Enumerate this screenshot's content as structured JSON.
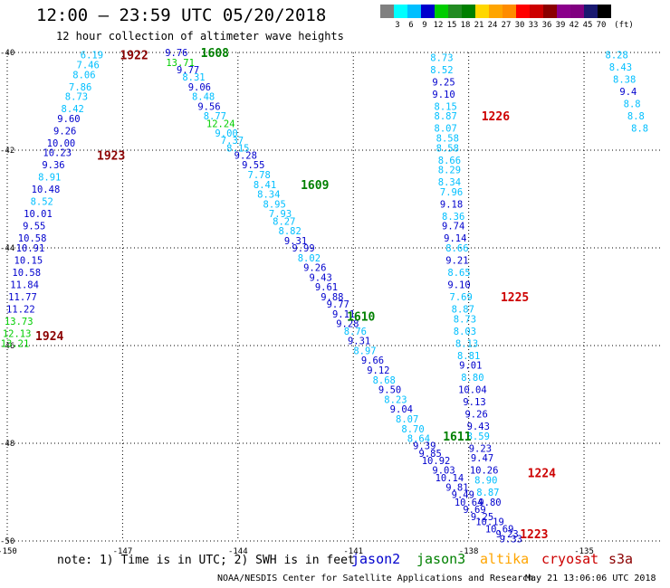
{
  "title": "12:00 — 23:59 UTC 05/20/2018",
  "subtitle": "12 hour collection of altimeter wave heights",
  "legend": {
    "colors": [
      "#808080",
      "#00ffff",
      "#00bfff",
      "#0000cd",
      "#00cd00",
      "#228b22",
      "#008000",
      "#ffd700",
      "#ffa500",
      "#ff8c00",
      "#ff0000",
      "#cd0000",
      "#8b0000",
      "#8b008b",
      "#800080",
      "#191970",
      "#000000"
    ],
    "labels": [
      "3",
      "6",
      "9",
      "12",
      "15",
      "18",
      "21",
      "24",
      "27",
      "30",
      "33",
      "36",
      "39",
      "42",
      "45",
      "70"
    ],
    "unit": "(ft)"
  },
  "note": "note: 1) Time is in UTC; 2) SWH is in feet",
  "satellites": [
    {
      "name": "jason2",
      "color": "#0000cd"
    },
    {
      "name": "jason3",
      "color": "#008000"
    },
    {
      "name": "altika",
      "color": "#ffa500"
    },
    {
      "name": "cryosat",
      "color": "#cd0000"
    },
    {
      "name": "s3a",
      "color": "#8b0000"
    }
  ],
  "credit": "NOAA/NESDIS Center for Satellite Applications and Research",
  "stamp": "May 21 13:06:06 UTC 2018",
  "chart_data": {
    "type": "scatter",
    "xlim": [
      -150,
      -133
    ],
    "ylim": [
      -50,
      -40
    ],
    "x_ticks": [
      "-150",
      "-147",
      "-144",
      "-141",
      "-138",
      "-135"
    ],
    "y_ticks": [
      "-40",
      "-42",
      "-44",
      "-46",
      "-48",
      "-50"
    ],
    "grid": true,
    "grid_style": "dotted",
    "palette": {
      "c3": "#00ffff",
      "c6": "#00bfff",
      "c9": "#0000cd",
      "c12": "#00cd00",
      "j3": "#008000",
      "cryo": "#cd0000",
      "s3a": "#8b0000"
    },
    "time_labels": [
      {
        "text": "1922",
        "x": -146.7,
        "y": -40.05,
        "c": "s3a"
      },
      {
        "text": "1923",
        "x": -147.3,
        "y": -42.1,
        "c": "s3a"
      },
      {
        "text": "1924",
        "x": -148.9,
        "y": -45.8,
        "c": "s3a"
      },
      {
        "text": "1608",
        "x": -144.6,
        "y": -40.0,
        "c": "j3"
      },
      {
        "text": "1609",
        "x": -142.0,
        "y": -42.7,
        "c": "j3"
      },
      {
        "text": "1610",
        "x": -140.8,
        "y": -45.4,
        "c": "j3"
      },
      {
        "text": "1611",
        "x": -138.3,
        "y": -47.85,
        "c": "j3"
      },
      {
        "text": "1226",
        "x": -137.3,
        "y": -41.3,
        "c": "cryo"
      },
      {
        "text": "1225",
        "x": -136.8,
        "y": -45.0,
        "c": "cryo"
      },
      {
        "text": "1224",
        "x": -136.1,
        "y": -48.6,
        "c": "cryo"
      },
      {
        "text": "1223",
        "x": -136.3,
        "y": -49.85,
        "c": "cryo"
      }
    ],
    "tracks": [
      {
        "name": "s3a-1922",
        "points": [
          {
            "v": "6.19",
            "x": -147.8,
            "y": -40.05,
            "c": "c6"
          },
          {
            "v": "7.46",
            "x": -147.9,
            "y": -40.25,
            "c": "c6"
          },
          {
            "v": "8.06",
            "x": -148.0,
            "y": -40.45,
            "c": "c6"
          },
          {
            "v": "7.86",
            "x": -148.1,
            "y": -40.7,
            "c": "c6"
          },
          {
            "v": "8.73",
            "x": -148.2,
            "y": -40.9,
            "c": "c6"
          },
          {
            "v": "8.42",
            "x": -148.3,
            "y": -41.15,
            "c": "c6"
          },
          {
            "v": "9.60",
            "x": -148.4,
            "y": -41.35,
            "c": "c9"
          },
          {
            "v": "9.26",
            "x": -148.5,
            "y": -41.6,
            "c": "c9"
          },
          {
            "v": "10.00",
            "x": -148.6,
            "y": -41.85,
            "c": "c9"
          }
        ]
      },
      {
        "name": "s3a-1923",
        "points": [
          {
            "v": "10.23",
            "x": -148.7,
            "y": -42.05,
            "c": "c9"
          },
          {
            "v": "9.36",
            "x": -148.8,
            "y": -42.3,
            "c": "c9"
          },
          {
            "v": "8.91",
            "x": -148.9,
            "y": -42.55,
            "c": "c6"
          },
          {
            "v": "10.48",
            "x": -149.0,
            "y": -42.8,
            "c": "c9"
          },
          {
            "v": "8.52",
            "x": -149.1,
            "y": -43.05,
            "c": "c6"
          },
          {
            "v": "10.01",
            "x": -149.2,
            "y": -43.3,
            "c": "c9"
          },
          {
            "v": "9.55",
            "x": -149.3,
            "y": -43.55,
            "c": "c9"
          },
          {
            "v": "10.58",
            "x": -149.35,
            "y": -43.8,
            "c": "c9"
          },
          {
            "v": "10.91",
            "x": -149.4,
            "y": -44.0,
            "c": "c9"
          },
          {
            "v": "10.15",
            "x": -149.45,
            "y": -44.25,
            "c": "c9"
          },
          {
            "v": "10.58",
            "x": -149.5,
            "y": -44.5,
            "c": "c9"
          },
          {
            "v": "11.84",
            "x": -149.55,
            "y": -44.75,
            "c": "c9"
          },
          {
            "v": "11.77",
            "x": -149.6,
            "y": -45.0,
            "c": "c9"
          },
          {
            "v": "11.22",
            "x": -149.65,
            "y": -45.25,
            "c": "c9"
          },
          {
            "v": "13.73",
            "x": -149.7,
            "y": -45.5,
            "c": "c12"
          },
          {
            "v": "12.13",
            "x": -149.75,
            "y": -45.75,
            "c": "c12"
          },
          {
            "v": "13.21",
            "x": -149.8,
            "y": -45.95,
            "c": "c12"
          }
        ]
      },
      {
        "name": "jason3-1608-1611",
        "points": [
          {
            "v": "9.76",
            "x": -145.6,
            "y": -40.0,
            "c": "c9"
          },
          {
            "v": "13.71",
            "x": -145.5,
            "y": -40.2,
            "c": "c12"
          },
          {
            "v": "9.77",
            "x": -145.3,
            "y": -40.35,
            "c": "c9"
          },
          {
            "v": "8.31",
            "x": -145.15,
            "y": -40.5,
            "c": "c6"
          },
          {
            "v": "9.06",
            "x": -145.0,
            "y": -40.7,
            "c": "c9"
          },
          {
            "v": "8.48",
            "x": -144.9,
            "y": -40.9,
            "c": "c6"
          },
          {
            "v": "9.56",
            "x": -144.75,
            "y": -41.1,
            "c": "c9"
          },
          {
            "v": "8.77",
            "x": -144.6,
            "y": -41.3,
            "c": "c6"
          },
          {
            "v": "12.24",
            "x": -144.45,
            "y": -41.45,
            "c": "c12"
          },
          {
            "v": "9.00",
            "x": -144.3,
            "y": -41.65,
            "c": "c6"
          },
          {
            "v": "7.37",
            "x": -144.15,
            "y": -41.8,
            "c": "c6"
          },
          {
            "v": "8.15",
            "x": -144.0,
            "y": -41.95,
            "c": "c6"
          },
          {
            "v": "9.28",
            "x": -143.8,
            "y": -42.1,
            "c": "c9"
          },
          {
            "v": "9.55",
            "x": -143.6,
            "y": -42.3,
            "c": "c9"
          },
          {
            "v": "7.78",
            "x": -143.45,
            "y": -42.5,
            "c": "c6"
          },
          {
            "v": "8.41",
            "x": -143.3,
            "y": -42.7,
            "c": "c6"
          },
          {
            "v": "8.34",
            "x": -143.2,
            "y": -42.9,
            "c": "c6"
          },
          {
            "v": "8.95",
            "x": -143.05,
            "y": -43.1,
            "c": "c6"
          },
          {
            "v": "7.93",
            "x": -142.9,
            "y": -43.3,
            "c": "c6"
          },
          {
            "v": "8.27",
            "x": -142.8,
            "y": -43.45,
            "c": "c6"
          },
          {
            "v": "8.82",
            "x": -142.65,
            "y": -43.65,
            "c": "c6"
          },
          {
            "v": "9.31",
            "x": -142.5,
            "y": -43.85,
            "c": "c9"
          },
          {
            "v": "9.99",
            "x": -142.3,
            "y": -44.0,
            "c": "c9"
          },
          {
            "v": "8.02",
            "x": -142.15,
            "y": -44.2,
            "c": "c6"
          },
          {
            "v": "9.26",
            "x": -142.0,
            "y": -44.4,
            "c": "c9"
          },
          {
            "v": "9.43",
            "x": -141.85,
            "y": -44.6,
            "c": "c9"
          },
          {
            "v": "9.61",
            "x": -141.7,
            "y": -44.8,
            "c": "c9"
          },
          {
            "v": "9.88",
            "x": -141.55,
            "y": -45.0,
            "c": "c9"
          },
          {
            "v": "9.77",
            "x": -141.4,
            "y": -45.15,
            "c": "c9"
          },
          {
            "v": "9.11",
            "x": -141.25,
            "y": -45.35,
            "c": "c9"
          },
          {
            "v": "9.28",
            "x": -141.15,
            "y": -45.55,
            "c": "c9"
          },
          {
            "v": "8.76",
            "x": -140.95,
            "y": -45.7,
            "c": "c6"
          },
          {
            "v": "9.31",
            "x": -140.85,
            "y": -45.9,
            "c": "c9"
          },
          {
            "v": "8.97",
            "x": -140.7,
            "y": -46.1,
            "c": "c6"
          },
          {
            "v": "9.66",
            "x": -140.5,
            "y": -46.3,
            "c": "c9"
          },
          {
            "v": "9.12",
            "x": -140.35,
            "y": -46.5,
            "c": "c9"
          },
          {
            "v": "8.68",
            "x": -140.2,
            "y": -46.7,
            "c": "c6"
          },
          {
            "v": "9.50",
            "x": -140.05,
            "y": -46.9,
            "c": "c9"
          },
          {
            "v": "8.23",
            "x": -139.9,
            "y": -47.1,
            "c": "c6"
          },
          {
            "v": "9.04",
            "x": -139.75,
            "y": -47.3,
            "c": "c9"
          },
          {
            "v": "8.07",
            "x": -139.6,
            "y": -47.5,
            "c": "c6"
          },
          {
            "v": "8.70",
            "x": -139.45,
            "y": -47.7,
            "c": "c6"
          },
          {
            "v": "8.64",
            "x": -139.3,
            "y": -47.9,
            "c": "c6"
          },
          {
            "v": "9.39",
            "x": -139.15,
            "y": -48.05,
            "c": "c9"
          },
          {
            "v": "9.85",
            "x": -139.0,
            "y": -48.2,
            "c": "c9"
          },
          {
            "v": "10.92",
            "x": -138.85,
            "y": -48.35,
            "c": "c9"
          },
          {
            "v": "9.03",
            "x": -138.65,
            "y": -48.55,
            "c": "c9"
          },
          {
            "v": "10.14",
            "x": -138.5,
            "y": -48.7,
            "c": "c9"
          },
          {
            "v": "9.81",
            "x": -138.3,
            "y": -48.9,
            "c": "c9"
          },
          {
            "v": "9.49",
            "x": -138.15,
            "y": -49.05,
            "c": "c9"
          },
          {
            "v": "10.64",
            "x": -138.0,
            "y": -49.2,
            "c": "c9"
          },
          {
            "v": "9.69",
            "x": -137.85,
            "y": -49.35,
            "c": "c9"
          },
          {
            "v": "9.25",
            "x": -137.65,
            "y": -49.5,
            "c": "c9"
          },
          {
            "v": "10.19",
            "x": -137.45,
            "y": -49.6,
            "c": "c9"
          },
          {
            "v": "10.69",
            "x": -137.2,
            "y": -49.75,
            "c": "c9"
          },
          {
            "v": "9.23",
            "x": -137.0,
            "y": -49.85,
            "c": "c9"
          }
        ]
      },
      {
        "name": "cryosat-1226-1223",
        "points": [
          {
            "v": "8.73",
            "x": -138.7,
            "y": -40.1,
            "c": "c6"
          },
          {
            "v": "8.52",
            "x": -138.7,
            "y": -40.35,
            "c": "c6"
          },
          {
            "v": "9.25",
            "x": -138.65,
            "y": -40.6,
            "c": "c9"
          },
          {
            "v": "9.10",
            "x": -138.65,
            "y": -40.85,
            "c": "c9"
          },
          {
            "v": "8.15",
            "x": -138.6,
            "y": -41.1,
            "c": "c6"
          },
          {
            "v": "8.87",
            "x": -138.6,
            "y": -41.3,
            "c": "c6"
          },
          {
            "v": "8.07",
            "x": -138.6,
            "y": -41.55,
            "c": "c6"
          },
          {
            "v": "8.58",
            "x": -138.55,
            "y": -41.75,
            "c": "c6"
          },
          {
            "v": "8.58",
            "x": -138.55,
            "y": -41.95,
            "c": "c6"
          },
          {
            "v": "8.66",
            "x": -138.5,
            "y": -42.2,
            "c": "c6"
          },
          {
            "v": "8.29",
            "x": -138.5,
            "y": -42.4,
            "c": "c6"
          },
          {
            "v": "8.34",
            "x": -138.5,
            "y": -42.65,
            "c": "c6"
          },
          {
            "v": "7.96",
            "x": -138.45,
            "y": -42.85,
            "c": "c6"
          },
          {
            "v": "9.18",
            "x": -138.45,
            "y": -43.1,
            "c": "c9"
          },
          {
            "v": "8.36",
            "x": -138.4,
            "y": -43.35,
            "c": "c6"
          },
          {
            "v": "9.74",
            "x": -138.4,
            "y": -43.55,
            "c": "c9"
          },
          {
            "v": "9.14",
            "x": -138.35,
            "y": -43.8,
            "c": "c9"
          },
          {
            "v": "8.66",
            "x": -138.3,
            "y": -44.0,
            "c": "c6"
          },
          {
            "v": "9.21",
            "x": -138.3,
            "y": -44.25,
            "c": "c9"
          },
          {
            "v": "8.65",
            "x": -138.25,
            "y": -44.5,
            "c": "c6"
          },
          {
            "v": "9.10",
            "x": -138.25,
            "y": -44.75,
            "c": "c9"
          },
          {
            "v": "7.69",
            "x": -138.2,
            "y": -45.0,
            "c": "c6"
          },
          {
            "v": "8.87",
            "x": -138.15,
            "y": -45.25,
            "c": "c6"
          },
          {
            "v": "8.73",
            "x": -138.1,
            "y": -45.45,
            "c": "c6"
          },
          {
            "v": "8.03",
            "x": -138.1,
            "y": -45.7,
            "c": "c6"
          },
          {
            "v": "8.13",
            "x": -138.05,
            "y": -45.95,
            "c": "c6"
          },
          {
            "v": "8.81",
            "x": -138.0,
            "y": -46.2,
            "c": "c6"
          },
          {
            "v": "9.01",
            "x": -137.95,
            "y": -46.4,
            "c": "c9"
          },
          {
            "v": "8.80",
            "x": -137.9,
            "y": -46.65,
            "c": "c6"
          },
          {
            "v": "10.04",
            "x": -137.9,
            "y": -46.9,
            "c": "c9"
          },
          {
            "v": "9.13",
            "x": -137.85,
            "y": -47.15,
            "c": "c9"
          },
          {
            "v": "9.26",
            "x": -137.8,
            "y": -47.4,
            "c": "c9"
          },
          {
            "v": "9.43",
            "x": -137.75,
            "y": -47.65,
            "c": "c9"
          },
          {
            "v": "8.59",
            "x": -137.75,
            "y": -47.85,
            "c": "c6"
          },
          {
            "v": "9.23",
            "x": -137.7,
            "y": -48.1,
            "c": "c9"
          },
          {
            "v": "9.47",
            "x": -137.65,
            "y": -48.3,
            "c": "c9"
          },
          {
            "v": "10.26",
            "x": -137.6,
            "y": -48.55,
            "c": "c9"
          },
          {
            "v": "8.90",
            "x": -137.55,
            "y": -48.75,
            "c": "c6"
          },
          {
            "v": "8.87",
            "x": -137.5,
            "y": -49.0,
            "c": "c6"
          },
          {
            "v": "9.80",
            "x": -137.45,
            "y": -49.2,
            "c": "c9"
          },
          {
            "v": "9.33",
            "x": -136.9,
            "y": -49.95,
            "c": "c9"
          }
        ]
      },
      {
        "name": "edge-track",
        "points": [
          {
            "v": "8.28",
            "x": -134.15,
            "y": -40.05,
            "c": "c6"
          },
          {
            "v": "8.43",
            "x": -134.05,
            "y": -40.3,
            "c": "c6"
          },
          {
            "v": "8.38",
            "x": -133.95,
            "y": -40.55,
            "c": "c6"
          },
          {
            "v": "9.4",
            "x": -133.85,
            "y": -40.8,
            "c": "c9"
          },
          {
            "v": "8.8",
            "x": -133.75,
            "y": -41.05,
            "c": "c6"
          },
          {
            "v": "8.8",
            "x": -133.65,
            "y": -41.3,
            "c": "c6"
          },
          {
            "v": "8.8",
            "x": -133.55,
            "y": -41.55,
            "c": "c6"
          }
        ]
      }
    ]
  }
}
